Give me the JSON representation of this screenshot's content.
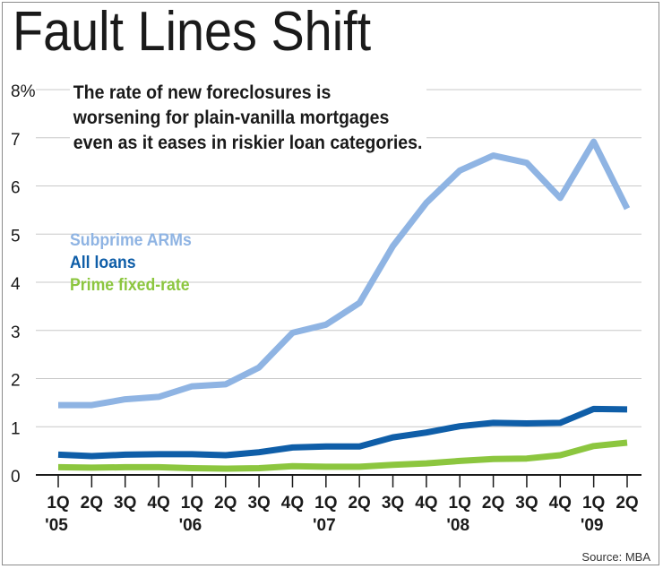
{
  "title": "Fault Lines Shift",
  "subtitle": "The rate of new foreclosures is worsening for plain-vanilla mortgages even as it eases in riskier loan categories.",
  "source": "Source: MBA",
  "colors": {
    "subprime": "#8fb4e3",
    "all_loans": "#0f5ea8",
    "prime_fixed": "#8cc63f",
    "grid": "#c8c8c8",
    "axis": "#1a1a1a"
  },
  "chart_data": {
    "type": "line",
    "title": "Fault Lines Shift",
    "y_ticks": [
      "8%",
      "7",
      "6",
      "5",
      "4",
      "3",
      "2",
      "1",
      "0"
    ],
    "y_tick_values": [
      8,
      7,
      6,
      5,
      4,
      3,
      2,
      1,
      0
    ],
    "ylim": [
      0,
      8
    ],
    "x": [
      "1Q '05",
      "2Q",
      "3Q",
      "4Q",
      "1Q '06",
      "2Q",
      "3Q",
      "4Q",
      "1Q '07",
      "2Q",
      "3Q",
      "4Q",
      "1Q '08",
      "2Q",
      "3Q",
      "4Q",
      "1Q '09",
      "2Q"
    ],
    "x_tick_labels": [
      {
        "q": "1Q",
        "y": "'05"
      },
      {
        "q": "2Q",
        "y": ""
      },
      {
        "q": "3Q",
        "y": ""
      },
      {
        "q": "4Q",
        "y": ""
      },
      {
        "q": "1Q",
        "y": "'06"
      },
      {
        "q": "2Q",
        "y": ""
      },
      {
        "q": "3Q",
        "y": ""
      },
      {
        "q": "4Q",
        "y": ""
      },
      {
        "q": "1Q",
        "y": "'07"
      },
      {
        "q": "2Q",
        "y": ""
      },
      {
        "q": "3Q",
        "y": ""
      },
      {
        "q": "4Q",
        "y": ""
      },
      {
        "q": "1Q",
        "y": "'08"
      },
      {
        "q": "2Q",
        "y": ""
      },
      {
        "q": "3Q",
        "y": ""
      },
      {
        "q": "4Q",
        "y": ""
      },
      {
        "q": "1Q",
        "y": "'09"
      },
      {
        "q": "2Q",
        "y": ""
      }
    ],
    "grid": true,
    "legend_position": "left, middle",
    "series": [
      {
        "name": "Subprime ARMs",
        "color": "#8fb4e3",
        "values": [
          1.45,
          1.45,
          1.57,
          1.62,
          1.84,
          1.88,
          2.23,
          2.95,
          3.12,
          3.57,
          4.75,
          5.65,
          6.32,
          6.63,
          6.48,
          5.75,
          6.92,
          5.53
        ]
      },
      {
        "name": "All loans",
        "color": "#0f5ea8",
        "values": [
          0.42,
          0.39,
          0.42,
          0.43,
          0.43,
          0.41,
          0.47,
          0.57,
          0.59,
          0.59,
          0.78,
          0.88,
          1.01,
          1.08,
          1.07,
          1.08,
          1.37,
          1.36
        ]
      },
      {
        "name": "Prime fixed-rate",
        "color": "#8cc63f",
        "values": [
          0.16,
          0.15,
          0.16,
          0.16,
          0.14,
          0.13,
          0.14,
          0.18,
          0.17,
          0.17,
          0.21,
          0.24,
          0.29,
          0.33,
          0.34,
          0.41,
          0.6,
          0.67
        ]
      }
    ]
  }
}
